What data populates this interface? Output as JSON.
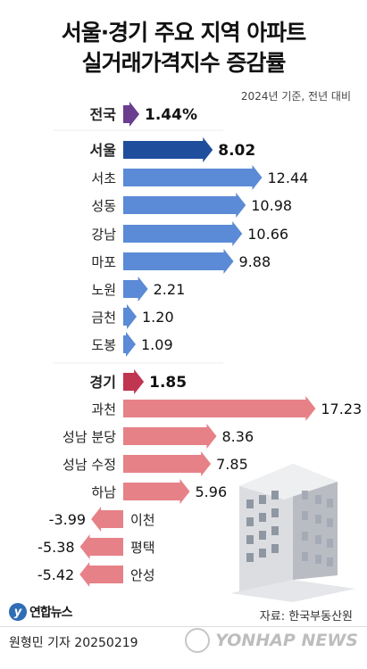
{
  "title_lines": [
    "서울·경기 주요 지역 아파트",
    "실거래가격지수 증감률"
  ],
  "basis": "2024년 기준, 전년 대비",
  "source": "자료: 한국부동산원",
  "logo_text": "연합뉴스",
  "reporter": "원형민 기자 20250219",
  "watermark": "YONHAP NEWS",
  "colors": {
    "national": "#6a3d8f",
    "seoul_total": "#1f4f9c",
    "seoul": "#5b8bd6",
    "gyeonggi_total": "#c0354f",
    "gyeonggi": "#e78188"
  },
  "chart_data": {
    "type": "bar",
    "orientation": "horizontal",
    "unit": "%",
    "categories": [
      "전국",
      "서울",
      "서초",
      "성동",
      "강남",
      "마포",
      "노원",
      "금천",
      "도봉",
      "경기",
      "과천",
      "성남 분당",
      "성남 수정",
      "하남",
      "이천",
      "평택",
      "안성"
    ],
    "values": [
      1.44,
      8.02,
      12.44,
      10.98,
      10.66,
      9.88,
      2.21,
      1.2,
      1.09,
      1.85,
      17.23,
      8.36,
      7.85,
      5.96,
      -3.99,
      -5.38,
      -5.42
    ],
    "value_labels": [
      "1.44%",
      "8.02",
      "12.44",
      "10.98",
      "10.66",
      "9.88",
      "2.21",
      "1.20",
      "1.09",
      "1.85",
      "17.23",
      "8.36",
      "7.85",
      "5.96",
      "-3.99",
      "-5.38",
      "-5.42"
    ],
    "groups": [
      "national",
      "seoul_total",
      "seoul",
      "seoul",
      "seoul",
      "seoul",
      "seoul",
      "seoul",
      "seoul",
      "gyeonggi_total",
      "gyeonggi",
      "gyeonggi",
      "gyeonggi",
      "gyeonggi",
      "gyeonggi",
      "gyeonggi",
      "gyeonggi"
    ],
    "bold": [
      true,
      true,
      false,
      false,
      false,
      false,
      false,
      false,
      false,
      true,
      false,
      false,
      false,
      false,
      false,
      false,
      false
    ]
  }
}
